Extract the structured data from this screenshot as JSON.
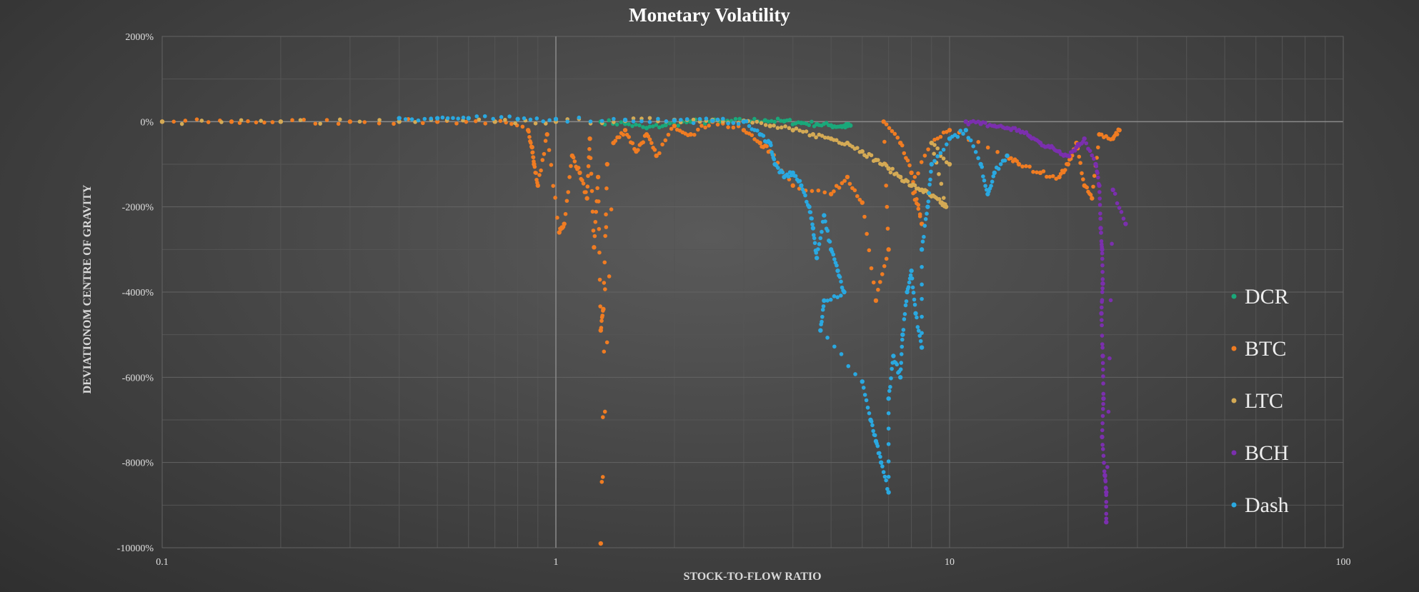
{
  "chart_data": {
    "type": "scatter",
    "title": "Monetary Volatility",
    "xlabel": "STOCK-TO-FLOW RATIO",
    "ylabel": "DEVIATIONOM CENTRE OF GRAVITY",
    "x_scale": "log",
    "xlim": [
      0.1,
      100
    ],
    "ylim": [
      -10000,
      2000
    ],
    "x_ticks": [
      "0.1",
      "1",
      "10",
      "100"
    ],
    "y_ticks": [
      "2000%",
      "0%",
      "-2000%",
      "-4000%",
      "-6000%",
      "-8000%",
      "-10000%"
    ],
    "grid": true,
    "legend_position": "right",
    "series": [
      {
        "name": "DCR",
        "color": "#1aa87a",
        "points": [
          [
            1.3,
            0
          ],
          [
            1.5,
            -50
          ],
          [
            1.7,
            -150
          ],
          [
            1.9,
            -80
          ],
          [
            2.2,
            0
          ],
          [
            2.6,
            0
          ],
          [
            3.0,
            20
          ],
          [
            3.4,
            30
          ],
          [
            3.8,
            10
          ],
          [
            4.2,
            -30
          ],
          [
            4.6,
            -60
          ],
          [
            5.0,
            -90
          ],
          [
            5.3,
            -110
          ],
          [
            5.5,
            -100
          ],
          [
            5.6,
            -90
          ]
        ]
      },
      {
        "name": "BTC",
        "color": "#f07c22",
        "points": [
          [
            0.1,
            0
          ],
          [
            0.15,
            0
          ],
          [
            0.2,
            0
          ],
          [
            0.3,
            0
          ],
          [
            0.5,
            0
          ],
          [
            0.7,
            0
          ],
          [
            0.85,
            -200
          ],
          [
            0.87,
            -600
          ],
          [
            0.88,
            -1000
          ],
          [
            0.9,
            -1500
          ],
          [
            0.95,
            -300
          ],
          [
            1.02,
            -2600
          ],
          [
            1.05,
            -2400
          ],
          [
            1.1,
            -800
          ],
          [
            1.15,
            -1200
          ],
          [
            1.2,
            -1800
          ],
          [
            1.22,
            -400
          ],
          [
            1.25,
            -2950
          ],
          [
            1.28,
            -1300
          ],
          [
            1.3,
            -4900
          ],
          [
            1.32,
            -4400
          ],
          [
            1.35,
            -1000
          ],
          [
            1.3,
            -9900
          ],
          [
            1.4,
            -500
          ],
          [
            1.5,
            -200
          ],
          [
            1.6,
            -700
          ],
          [
            1.7,
            -300
          ],
          [
            1.8,
            -800
          ],
          [
            2.0,
            -100
          ],
          [
            2.2,
            -300
          ],
          [
            2.5,
            0
          ],
          [
            3.0,
            -200
          ],
          [
            3.3,
            -500
          ],
          [
            3.5,
            -700
          ],
          [
            4.0,
            -1500
          ],
          [
            5.0,
            -1700
          ],
          [
            5.5,
            -1300
          ],
          [
            6.0,
            -1900
          ],
          [
            6.5,
            -4200
          ],
          [
            7.0,
            -3000
          ],
          [
            6.8,
            0
          ],
          [
            7.5,
            -500
          ],
          [
            8.0,
            -1200
          ],
          [
            8.5,
            -2400
          ],
          [
            8.0,
            -1500
          ],
          [
            9.0,
            -500
          ],
          [
            10.0,
            -200
          ],
          [
            14.0,
            -800
          ],
          [
            15.0,
            -1000
          ],
          [
            17.0,
            -1200
          ],
          [
            19.0,
            -1300
          ],
          [
            20.0,
            -1000
          ],
          [
            21.0,
            -500
          ],
          [
            22.0,
            -1500
          ],
          [
            23.0,
            -1800
          ],
          [
            24.0,
            -300
          ],
          [
            26.0,
            -400
          ],
          [
            27.0,
            -200
          ]
        ]
      },
      {
        "name": "LTC",
        "color": "#d4aa55",
        "points": [
          [
            0.1,
            0
          ],
          [
            0.2,
            0
          ],
          [
            0.4,
            0
          ],
          [
            0.7,
            0
          ],
          [
            1.0,
            0
          ],
          [
            1.5,
            20
          ],
          [
            2.0,
            40
          ],
          [
            2.5,
            40
          ],
          [
            3.0,
            20
          ],
          [
            3.5,
            -100
          ],
          [
            4.0,
            -200
          ],
          [
            4.5,
            -300
          ],
          [
            5.0,
            -400
          ],
          [
            5.5,
            -500
          ],
          [
            6.0,
            -700
          ],
          [
            6.5,
            -900
          ],
          [
            7.0,
            -1100
          ],
          [
            7.5,
            -1300
          ],
          [
            8.0,
            -1500
          ],
          [
            8.5,
            -1600
          ],
          [
            9.0,
            -1750
          ],
          [
            9.5,
            -1900
          ],
          [
            9.8,
            -2000
          ],
          [
            9.0,
            -500
          ],
          [
            10.0,
            -1000
          ]
        ]
      },
      {
        "name": "BCH",
        "color": "#7b2fae",
        "points": [
          [
            11.0,
            0
          ],
          [
            12.0,
            -50
          ],
          [
            13.0,
            -100
          ],
          [
            14.0,
            -150
          ],
          [
            15.0,
            -200
          ],
          [
            16.0,
            -350
          ],
          [
            17.0,
            -500
          ],
          [
            18.0,
            -600
          ],
          [
            19.0,
            -700
          ],
          [
            20.0,
            -800
          ],
          [
            21.0,
            -600
          ],
          [
            22.0,
            -400
          ],
          [
            23.5,
            -1000
          ],
          [
            24.0,
            -1500
          ],
          [
            24.2,
            -2500
          ],
          [
            24.4,
            -3000
          ],
          [
            24.5,
            -3800
          ],
          [
            24.3,
            -4500
          ],
          [
            24.5,
            -5500
          ],
          [
            24.6,
            -6500
          ],
          [
            24.4,
            -7400
          ],
          [
            24.8,
            -8300
          ],
          [
            25.0,
            -8700
          ],
          [
            25.0,
            -9400
          ],
          [
            26.0,
            -1600
          ],
          [
            28.0,
            -2400
          ]
        ]
      },
      {
        "name": "Dash",
        "color": "#2aa8e0",
        "points": [
          [
            0.4,
            80
          ],
          [
            0.5,
            80
          ],
          [
            0.6,
            80
          ],
          [
            0.8,
            60
          ],
          [
            1.0,
            60
          ],
          [
            1.5,
            40
          ],
          [
            2.0,
            30
          ],
          [
            2.5,
            20
          ],
          [
            3.0,
            0
          ],
          [
            3.3,
            -300
          ],
          [
            3.5,
            -500
          ],
          [
            3.6,
            -1000
          ],
          [
            3.8,
            -1300
          ],
          [
            4.0,
            -1200
          ],
          [
            4.2,
            -1500
          ],
          [
            4.4,
            -2000
          ],
          [
            4.5,
            -2500
          ],
          [
            4.6,
            -3200
          ],
          [
            4.8,
            -2200
          ],
          [
            5.0,
            -3000
          ],
          [
            5.2,
            -3500
          ],
          [
            5.4,
            -4000
          ],
          [
            4.8,
            -4200
          ],
          [
            4.7,
            -4900
          ],
          [
            6.0,
            -6100
          ],
          [
            6.3,
            -7000
          ],
          [
            6.5,
            -7500
          ],
          [
            6.7,
            -8000
          ],
          [
            7.0,
            -8700
          ],
          [
            7.0,
            -6500
          ],
          [
            7.2,
            -5500
          ],
          [
            7.5,
            -6000
          ],
          [
            7.6,
            -5000
          ],
          [
            7.8,
            -4000
          ],
          [
            8.0,
            -3500
          ],
          [
            8.2,
            -4500
          ],
          [
            8.5,
            -5300
          ],
          [
            8.5,
            -3000
          ],
          [
            8.8,
            -2000
          ],
          [
            9.0,
            -1000
          ],
          [
            10.0,
            -400
          ],
          [
            11.0,
            -200
          ],
          [
            12.0,
            -1000
          ],
          [
            12.5,
            -1700
          ],
          [
            13.0,
            -1200
          ],
          [
            14.0,
            -800
          ]
        ]
      }
    ]
  }
}
